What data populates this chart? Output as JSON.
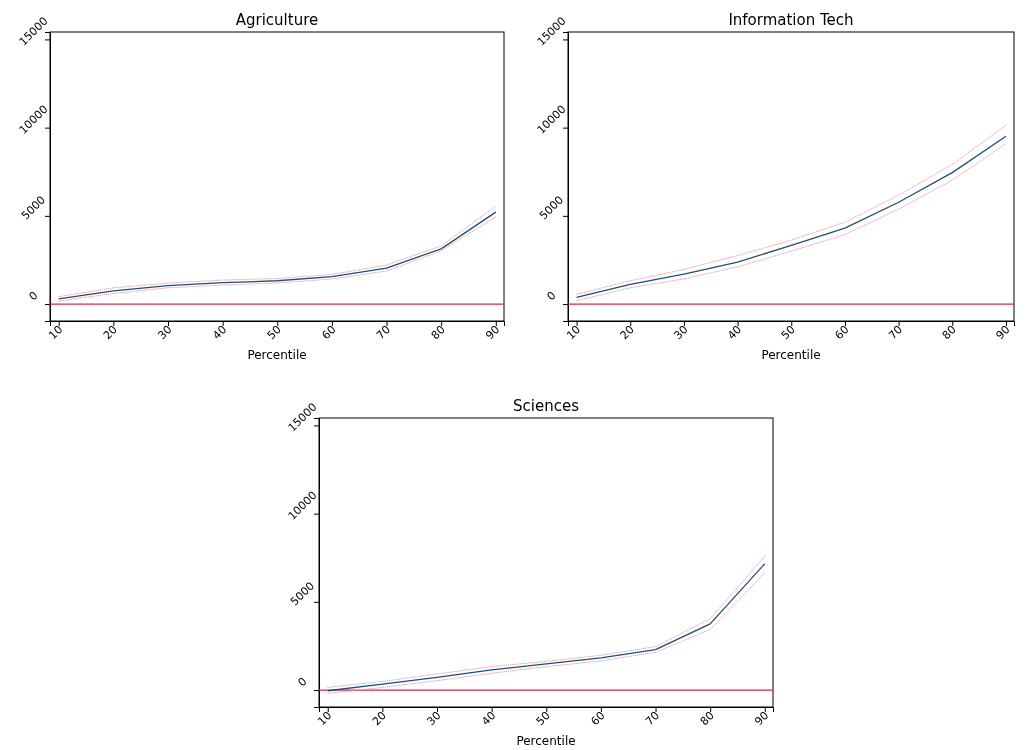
{
  "chart_data": [
    {
      "type": "line",
      "title": "Agriculture",
      "xlabel": "Percentile",
      "x": [
        10,
        20,
        30,
        40,
        50,
        60,
        70,
        80,
        90
      ],
      "xlim": [
        8.4,
        91.5
      ],
      "xticks": [
        10,
        20,
        30,
        40,
        50,
        60,
        70,
        80,
        90
      ],
      "ylim": [
        -960,
        15420
      ],
      "yticks": [
        0,
        5000,
        10000,
        15000
      ],
      "series": [
        {
          "color": "#1f4e79",
          "values": [
            300,
            750,
            1040,
            1210,
            1320,
            1550,
            2040,
            3130,
            5210
          ]
        },
        {
          "color": "#e3a3a8",
          "line_style": "dotted",
          "values": [
            170,
            600,
            920,
            1080,
            1190,
            1420,
            1870,
            3020,
            4940
          ]
        },
        {
          "color": "#e3a3a8",
          "line_style": "dotted",
          "values": [
            420,
            920,
            1190,
            1360,
            1450,
            1680,
            2210,
            3300,
            5550
          ]
        }
      ],
      "ref_lines": [
        {
          "axis": "y",
          "value": 0,
          "color": "#d62650"
        }
      ]
    },
    {
      "type": "line",
      "title": "Information Tech",
      "xlabel": "Percentile",
      "x": [
        10,
        20,
        30,
        40,
        50,
        60,
        70,
        80,
        90
      ],
      "xlim": [
        8.4,
        91.5
      ],
      "xticks": [
        10,
        20,
        30,
        40,
        50,
        60,
        70,
        80,
        90
      ],
      "ylim": [
        -960,
        15420
      ],
      "yticks": [
        0,
        5000,
        10000,
        15000
      ],
      "series": [
        {
          "color": "#1f4e79",
          "values": [
            380,
            1110,
            1700,
            2380,
            3320,
            4300,
            5770,
            7450,
            9510
          ]
        },
        {
          "color": "#e3a3a8",
          "line_style": "dotted",
          "values": [
            190,
            920,
            1430,
            2110,
            3000,
            3940,
            5380,
            7020,
            9090
          ]
        },
        {
          "color": "#e3a3a8",
          "line_style": "dotted",
          "values": [
            550,
            1320,
            1960,
            2750,
            3620,
            4640,
            6170,
            7920,
            10130
          ]
        }
      ],
      "ref_lines": [
        {
          "axis": "y",
          "value": 0,
          "color": "#d62650"
        }
      ]
    },
    {
      "type": "line",
      "title": "Sciences",
      "xlabel": "Percentile",
      "x": [
        10,
        20,
        30,
        40,
        50,
        60,
        70,
        80,
        90
      ],
      "xlim": [
        8.4,
        91.5
      ],
      "xticks": [
        10,
        20,
        30,
        40,
        50,
        60,
        70,
        80,
        90
      ],
      "ylim": [
        -960,
        15420
      ],
      "yticks": [
        0,
        5000,
        10000,
        15000
      ],
      "series": [
        {
          "color": "#1f4e79",
          "values": [
            -40,
            340,
            720,
            1140,
            1480,
            1820,
            2290,
            3750,
            7160
          ]
        },
        {
          "color": "#e3a3a8",
          "line_style": "dotted",
          "values": [
            -190,
            150,
            530,
            950,
            1330,
            1650,
            2140,
            3430,
            6650
          ]
        },
        {
          "color": "#e3a3a8",
          "line_style": "dotted",
          "values": [
            150,
            490,
            910,
            1330,
            1630,
            1970,
            2460,
            4050,
            7580
          ]
        }
      ],
      "ref_lines": [
        {
          "axis": "y",
          "value": 0,
          "color": "#d62650"
        }
      ]
    }
  ]
}
